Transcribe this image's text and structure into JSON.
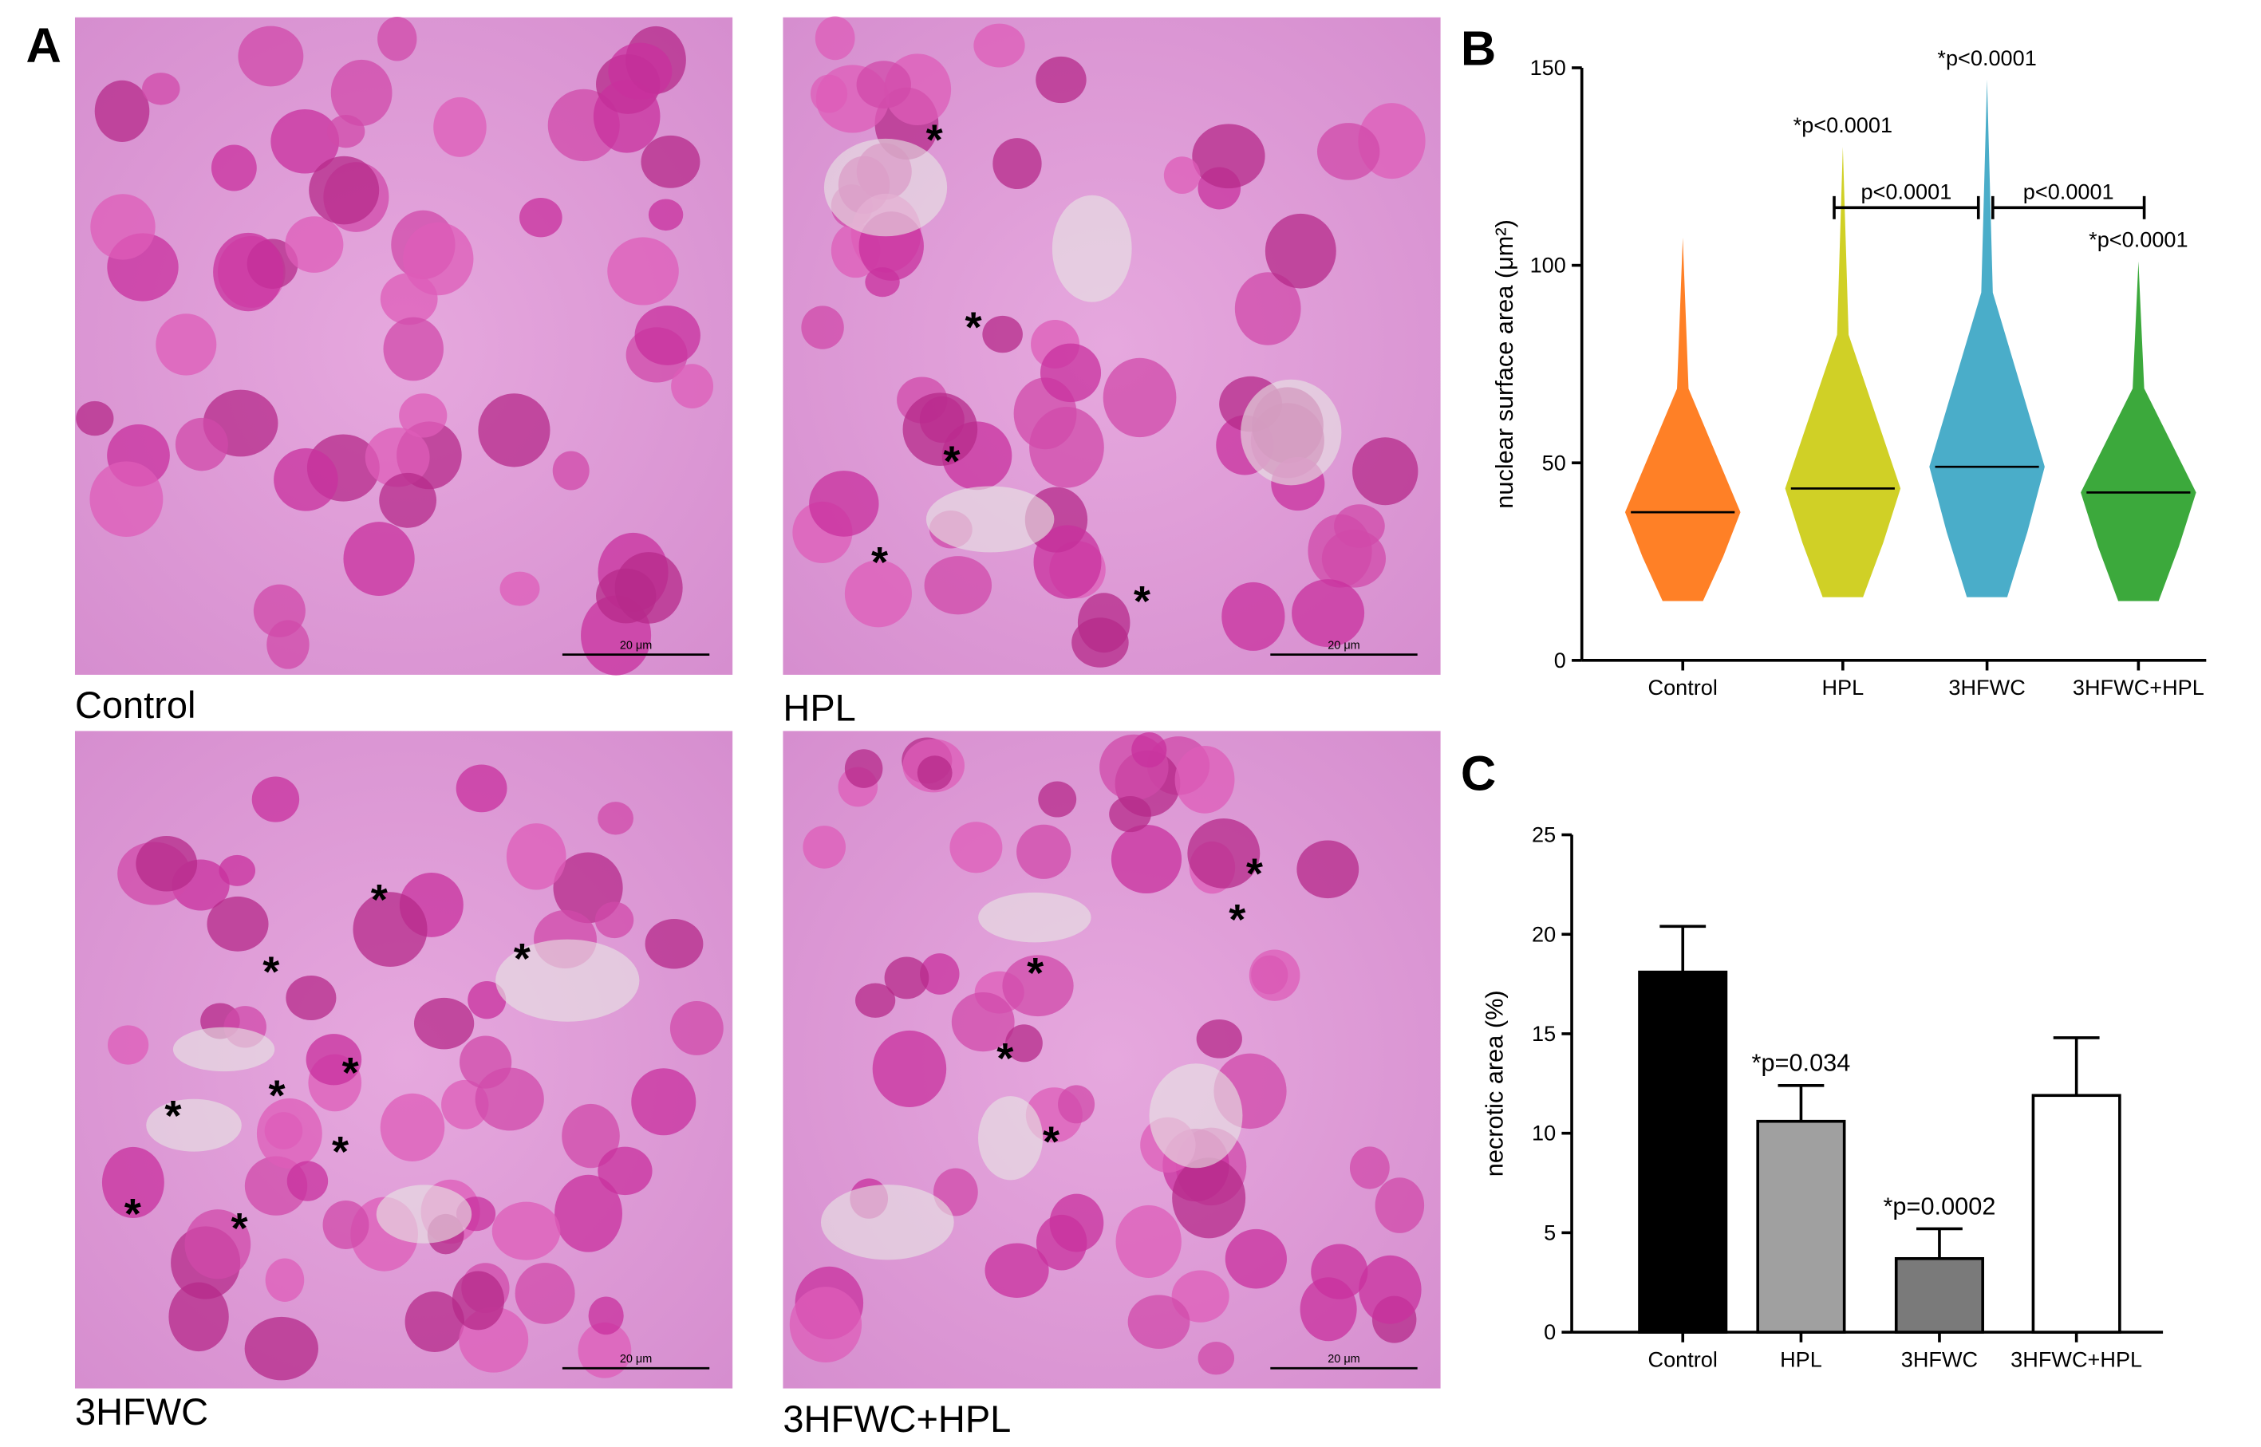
{
  "figure": {
    "panel_letters": [
      "A",
      "B",
      "C"
    ],
    "micrographs": [
      {
        "caption": "Control",
        "scale_bar": "20 μm"
      },
      {
        "caption": "HPL",
        "scale_bar": "20 μm"
      },
      {
        "caption": "3HFWC",
        "scale_bar": "20 μm"
      },
      {
        "caption": "3HFWC+HPL",
        "scale_bar": "20 μm"
      }
    ],
    "marker": "*"
  },
  "chart_data": [
    {
      "type": "swarm",
      "ylabel": "nuclear surface area (μm²)",
      "categories": [
        "Control",
        "HPL",
        "3HFWC",
        "3HFWC+HPL"
      ],
      "colors": [
        "#ff6a00",
        "#c8c800",
        "#2a9fc0",
        "#1a9a1a"
      ],
      "medians": [
        37.5,
        43.5,
        49,
        42.5
      ],
      "mins": [
        15,
        16,
        16,
        15
      ],
      "maxs": [
        107,
        130,
        147,
        101
      ],
      "ylim": [
        0,
        150
      ],
      "yticks": [
        0,
        50,
        100,
        150
      ],
      "significance": [
        {
          "text": "*p<0.0001",
          "category": 1
        },
        {
          "text": "*p<0.0001",
          "category": 2
        },
        {
          "text": "*p<0.0001",
          "category": 3
        }
      ],
      "brackets": [
        {
          "text": "p<0.0001",
          "from": 1,
          "to": 2
        },
        {
          "text": "p<0.0001",
          "from": 2,
          "to": 3
        }
      ]
    },
    {
      "type": "bar",
      "ylabel": "necrotic area (%)",
      "categories": [
        "Control",
        "HPL",
        "3HFWC",
        "3HFWC+HPL"
      ],
      "values": [
        18.1,
        10.6,
        3.7,
        11.9
      ],
      "errors": [
        2.3,
        1.8,
        1.5,
        2.9
      ],
      "colors": [
        "#000000",
        "#a0a0a0",
        "#7a7a7a",
        "#ffffff"
      ],
      "ylim": [
        0,
        25
      ],
      "yticks": [
        0,
        5,
        10,
        15,
        20,
        25
      ],
      "significance": [
        {
          "text": "*p=0.034",
          "category": 1
        },
        {
          "text": "*p=0.0002",
          "category": 2
        }
      ]
    }
  ]
}
